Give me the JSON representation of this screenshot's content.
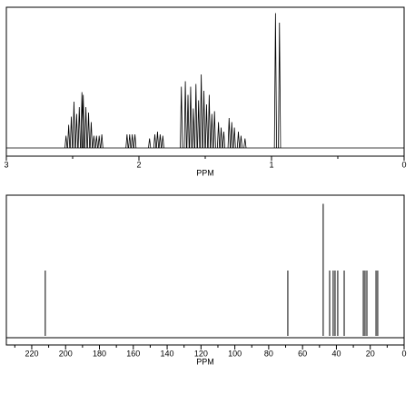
{
  "chart_data": [
    {
      "type": "spectrum",
      "xlabel": "PPM",
      "color": "#000000",
      "xlim": [
        3,
        0
      ],
      "xticks": [
        3,
        2,
        1,
        0
      ],
      "xminor_ticks": [
        2.5,
        1.5,
        0.5
      ],
      "ylim": [
        0,
        100
      ],
      "x": [
        2.55,
        2.53,
        2.51,
        2.49,
        2.47,
        2.45,
        2.43,
        2.42,
        2.4,
        2.38,
        2.36,
        2.34,
        2.32,
        2.3,
        2.28,
        2.09,
        2.07,
        2.05,
        2.03,
        1.92,
        1.88,
        1.86,
        1.84,
        1.82,
        1.68,
        1.65,
        1.63,
        1.61,
        1.59,
        1.57,
        1.55,
        1.53,
        1.51,
        1.49,
        1.47,
        1.45,
        1.43,
        1.4,
        1.38,
        1.36,
        1.32,
        1.3,
        1.28,
        1.25,
        1.23,
        1.2,
        0.97,
        0.94
      ],
      "values": [
        9,
        17,
        23,
        34,
        25,
        30,
        41,
        39,
        30,
        26,
        19,
        9,
        9,
        9,
        10,
        10,
        10,
        10,
        10,
        7,
        10,
        12,
        10,
        9,
        45,
        49,
        39,
        45,
        29,
        47,
        35,
        54,
        42,
        32,
        39,
        25,
        27,
        19,
        15,
        12,
        22,
        19,
        15,
        12,
        9,
        7,
        99,
        92
      ]
    },
    {
      "type": "stick",
      "xlabel": "PPM",
      "color": "#000000",
      "xlim": [
        235,
        0
      ],
      "xticks": [
        220,
        200,
        180,
        160,
        140,
        120,
        100,
        80,
        60,
        40,
        20,
        0
      ],
      "xminor_ticks": [
        230,
        210,
        190,
        170,
        150,
        130,
        110,
        90,
        70,
        50,
        30,
        10
      ],
      "ylim": [
        0,
        100
      ],
      "x": [
        212.0,
        68.7,
        47.8,
        44.0,
        41.9,
        40.8,
        39.2,
        35.4,
        24.1,
        23.1,
        22.0,
        16.6,
        15.6
      ],
      "values": [
        48,
        48,
        97,
        48,
        48,
        48,
        48,
        48,
        48,
        48,
        48,
        48,
        48
      ]
    }
  ]
}
